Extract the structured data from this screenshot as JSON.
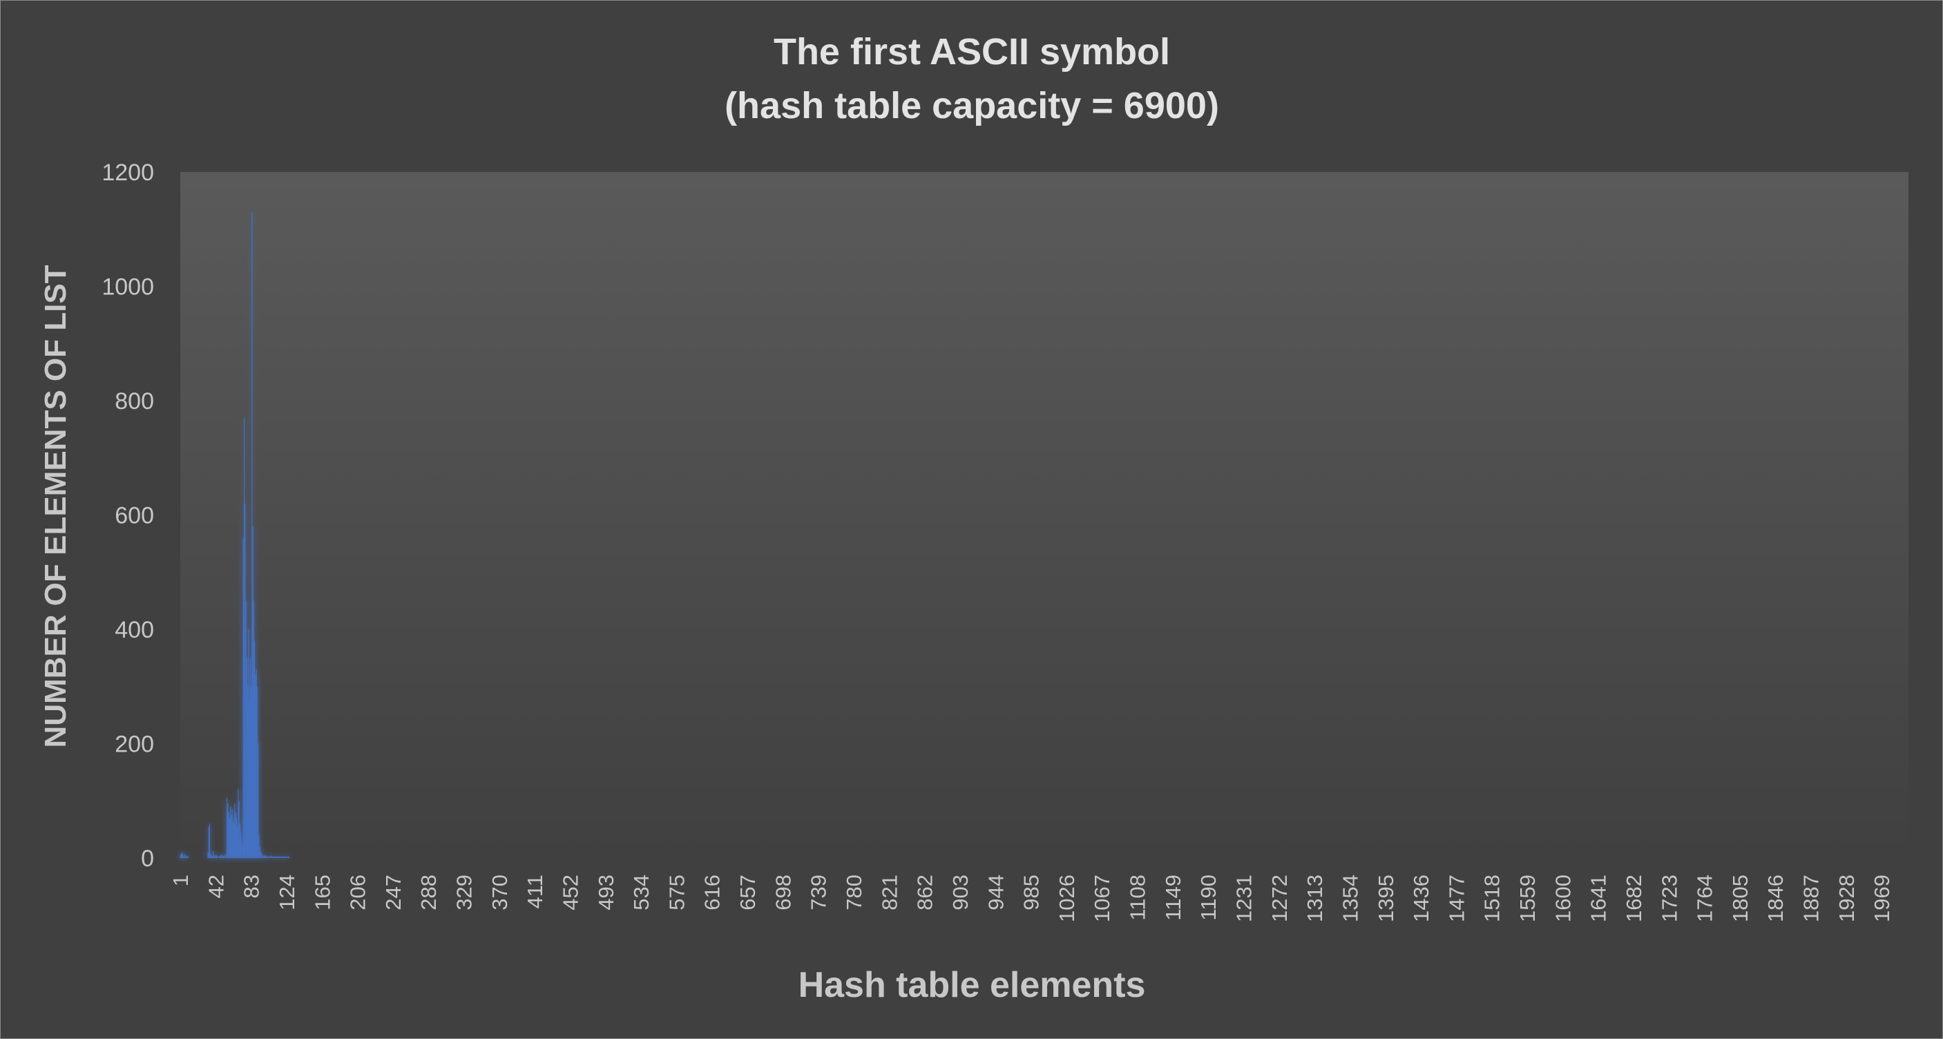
{
  "chart_data": {
    "type": "bar",
    "title": "The first ASCII symbol",
    "subtitle": "(hash table capacity = 6900)",
    "xlabel": "Hash table elements",
    "ylabel": "NUMBER OF ELEMENTS OF LIST",
    "x_range": [
      1,
      2000
    ],
    "ylim": [
      0,
      1200
    ],
    "y_ticks": [
      "0",
      "200",
      "400",
      "600",
      "800",
      "1000",
      "1200"
    ],
    "x_tick_labels": [
      "1",
      "42",
      "83",
      "124",
      "165",
      "206",
      "247",
      "288",
      "329",
      "370",
      "411",
      "452",
      "493",
      "534",
      "575",
      "616",
      "657",
      "698",
      "739",
      "780",
      "821",
      "862",
      "903",
      "944",
      "985",
      "1026",
      "1067",
      "1108",
      "1149",
      "1190",
      "1231",
      "1272",
      "1313",
      "1354",
      "1395",
      "1436",
      "1477",
      "1518",
      "1559",
      "1600",
      "1641",
      "1682",
      "1723",
      "1764",
      "1805",
      "1846",
      "1887",
      "1928",
      "1969"
    ],
    "grid": false,
    "legend": "none",
    "bar_color": "#4472C4",
    "series": [
      {
        "x": [
          1,
          2,
          3,
          4,
          5,
          6,
          7,
          8,
          9,
          10,
          33,
          34,
          35,
          36,
          37,
          38,
          39,
          40,
          41,
          42,
          43,
          44,
          45,
          46,
          47,
          48,
          49,
          50,
          51,
          52,
          53,
          54,
          55,
          56,
          57,
          58,
          59,
          60,
          61,
          62,
          63,
          64,
          65,
          66,
          67,
          68,
          69,
          70,
          71,
          72,
          73,
          74,
          75,
          76,
          77,
          78,
          79,
          80,
          81,
          82,
          83,
          84,
          85,
          86,
          87,
          88,
          89,
          90,
          91,
          92,
          93,
          94,
          95,
          96,
          97,
          98,
          99,
          100,
          101,
          102,
          103,
          104,
          105,
          106,
          107,
          108,
          109,
          110,
          111,
          112,
          113,
          114,
          115,
          116,
          117,
          118,
          119,
          120,
          121,
          122,
          123,
          124,
          125,
          126,
          127
        ],
        "values": [
          5,
          8,
          10,
          6,
          4,
          7,
          3,
          5,
          2,
          4,
          10,
          55,
          60,
          8,
          5,
          3,
          12,
          4,
          6,
          3,
          5,
          4,
          2,
          3,
          4,
          6,
          3,
          5,
          4,
          3,
          6,
          4,
          105,
          95,
          80,
          70,
          90,
          75,
          85,
          65,
          60,
          95,
          80,
          70,
          55,
          120,
          100,
          60,
          45,
          30,
          20,
          560,
          770,
          620,
          450,
          350,
          300,
          400,
          280,
          350,
          300,
          1130,
          580,
          450,
          380,
          320,
          330,
          300,
          200,
          40,
          20,
          12,
          8,
          5,
          4,
          3,
          5,
          3,
          4,
          2,
          3,
          2,
          3,
          4,
          2,
          3,
          2,
          3,
          2,
          3,
          2,
          3,
          2,
          3,
          2,
          3,
          2,
          3,
          2,
          3,
          2,
          3,
          2,
          3,
          2
        ]
      }
    ]
  }
}
